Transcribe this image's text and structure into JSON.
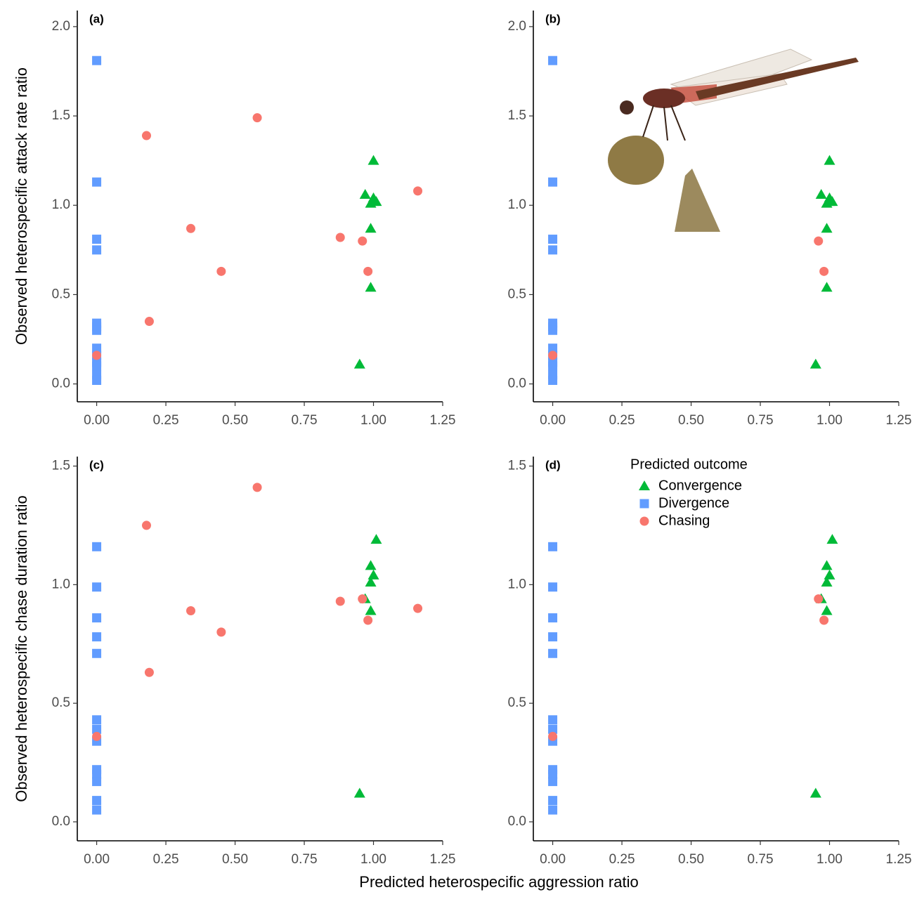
{
  "xlabel": "Predicted heterospecific aggression ratio",
  "chart_data": [
    {
      "type": "scatter",
      "panel": "(a)",
      "ylabel": "Observed heterospecific attack rate ratio",
      "xlim": [
        -0.07,
        1.25
      ],
      "ylim": [
        -0.1,
        2.09
      ],
      "xticks": [
        {
          "value": 0,
          "label": "0.00"
        },
        0.25,
        {
          "value": 0.5,
          "label": "0.50"
        },
        0.75,
        {
          "value": 1,
          "label": "1.00"
        },
        1.25
      ],
      "yticks": [
        {
          "value": 0,
          "label": "0.0"
        },
        0.5,
        {
          "value": 1,
          "label": "1.0"
        },
        1.5,
        {
          "value": 2,
          "label": "2.0"
        }
      ],
      "series": [
        {
          "name": "Convergence",
          "color": "#00BA38",
          "marker": "triangle",
          "x": [
            1.0,
            0.97,
            1.0,
            0.99,
            1.01,
            0.99,
            0.99,
            0.95,
            1.0
          ],
          "values": [
            1.25,
            1.06,
            1.04,
            1.01,
            1.02,
            0.87,
            0.54,
            0.11,
            1.02
          ]
        },
        {
          "name": "Divergence",
          "color": "#619CFF",
          "marker": "square",
          "x": [
            0,
            0,
            0,
            0,
            0,
            0,
            0,
            0,
            0,
            0,
            0,
            0,
            0
          ],
          "values": [
            1.81,
            1.13,
            0.81,
            0.75,
            0.34,
            0.32,
            0.3,
            0.2,
            0.16,
            0.12,
            0.1,
            0.05,
            0.02
          ]
        },
        {
          "name": "Chasing",
          "color": "#F8766D",
          "marker": "circle",
          "x": [
            0.18,
            0.58,
            0.34,
            0.19,
            0.45,
            0.88,
            0.96,
            0.98,
            1.16,
            0
          ],
          "values": [
            1.39,
            1.49,
            0.87,
            0.35,
            0.63,
            0.82,
            0.8,
            0.63,
            1.08,
            0.16
          ]
        }
      ]
    },
    {
      "type": "scatter",
      "panel": "(b)",
      "xlim": [
        -0.07,
        1.25
      ],
      "ylim": [
        -0.1,
        2.09
      ],
      "xticks": [
        {
          "value": 0,
          "label": "0.00"
        },
        0.25,
        {
          "value": 0.5,
          "label": "0.50"
        },
        0.75,
        {
          "value": 1,
          "label": "1.00"
        },
        1.25
      ],
      "yticks": [
        {
          "value": 0,
          "label": "0.0"
        },
        0.5,
        {
          "value": 1,
          "label": "1.0"
        },
        1.5,
        {
          "value": 2,
          "label": "2.0"
        }
      ],
      "series": [
        {
          "name": "Convergence",
          "color": "#00BA38",
          "marker": "triangle",
          "x": [
            1.0,
            0.97,
            1.0,
            0.99,
            1.01,
            0.99,
            0.99,
            0.95,
            1.0
          ],
          "values": [
            1.25,
            1.06,
            1.04,
            1.01,
            1.02,
            0.87,
            0.54,
            0.11,
            1.02
          ]
        },
        {
          "name": "Divergence",
          "color": "#619CFF",
          "marker": "square",
          "x": [
            0,
            0,
            0,
            0,
            0,
            0,
            0,
            0,
            0,
            0,
            0,
            0,
            0
          ],
          "values": [
            1.81,
            1.13,
            0.81,
            0.75,
            0.34,
            0.32,
            0.3,
            0.2,
            0.16,
            0.12,
            0.1,
            0.05,
            0.02
          ]
        },
        {
          "name": "Chasing",
          "color": "#F8766D",
          "marker": "circle",
          "x": [
            0.96,
            0.98,
            0
          ],
          "values": [
            0.8,
            0.63,
            0.16
          ]
        }
      ]
    },
    {
      "type": "scatter",
      "panel": "(c)",
      "ylabel": "Observed heterospecific chase duration ratio",
      "xlim": [
        -0.07,
        1.25
      ],
      "ylim": [
        -0.08,
        1.54
      ],
      "xticks": [
        {
          "value": 0,
          "label": "0.00"
        },
        0.25,
        {
          "value": 0.5,
          "label": "0.50"
        },
        0.75,
        {
          "value": 1,
          "label": "1.00"
        },
        1.25
      ],
      "yticks": [
        {
          "value": 0,
          "label": "0.0"
        },
        0.5,
        {
          "value": 1,
          "label": "1.0"
        },
        1.5
      ],
      "series": [
        {
          "name": "Convergence",
          "color": "#00BA38",
          "marker": "triangle",
          "x": [
            1.01,
            0.99,
            1.0,
            0.99,
            0.97,
            0.99,
            0.95
          ],
          "values": [
            1.19,
            1.08,
            1.04,
            1.01,
            0.94,
            0.89,
            0.12
          ]
        },
        {
          "name": "Divergence",
          "color": "#619CFF",
          "marker": "square",
          "x": [
            0,
            0,
            0,
            0,
            0,
            0,
            0,
            0,
            0,
            0,
            0,
            0,
            0
          ],
          "values": [
            1.16,
            0.99,
            0.86,
            0.78,
            0.71,
            0.43,
            0.39,
            0.34,
            0.22,
            0.2,
            0.17,
            0.09,
            0.05
          ]
        },
        {
          "name": "Chasing",
          "color": "#F8766D",
          "marker": "circle",
          "x": [
            0.18,
            0.58,
            0.34,
            0.45,
            0.19,
            0.88,
            0.96,
            0.98,
            1.16,
            0
          ],
          "values": [
            1.25,
            1.41,
            0.89,
            0.8,
            0.63,
            0.93,
            0.94,
            0.85,
            0.9,
            0.36
          ]
        }
      ]
    },
    {
      "type": "scatter",
      "panel": "(d)",
      "legend": true,
      "legend_title": "Predicted outcome",
      "xlim": [
        -0.07,
        1.25
      ],
      "ylim": [
        -0.08,
        1.54
      ],
      "xticks": [
        {
          "value": 0,
          "label": "0.00"
        },
        0.25,
        {
          "value": 0.5,
          "label": "0.50"
        },
        0.75,
        {
          "value": 1,
          "label": "1.00"
        },
        1.25
      ],
      "yticks": [
        {
          "value": 0,
          "label": "0.0"
        },
        0.5,
        {
          "value": 1,
          "label": "1.0"
        },
        1.5
      ],
      "series": [
        {
          "name": "Convergence",
          "color": "#00BA38",
          "marker": "triangle",
          "x": [
            1.01,
            0.99,
            1.0,
            0.99,
            0.97,
            0.99,
            0.95
          ],
          "values": [
            1.19,
            1.08,
            1.04,
            1.01,
            0.94,
            0.89,
            0.12
          ]
        },
        {
          "name": "Divergence",
          "color": "#619CFF",
          "marker": "square",
          "x": [
            0,
            0,
            0,
            0,
            0,
            0,
            0,
            0,
            0,
            0,
            0,
            0,
            0
          ],
          "values": [
            1.16,
            0.99,
            0.86,
            0.78,
            0.71,
            0.43,
            0.39,
            0.34,
            0.22,
            0.2,
            0.17,
            0.09,
            0.05
          ]
        },
        {
          "name": "Chasing",
          "color": "#F8766D",
          "marker": "circle",
          "x": [
            0.96,
            0.98,
            0
          ],
          "values": [
            0.94,
            0.85,
            0.36
          ]
        }
      ]
    }
  ]
}
